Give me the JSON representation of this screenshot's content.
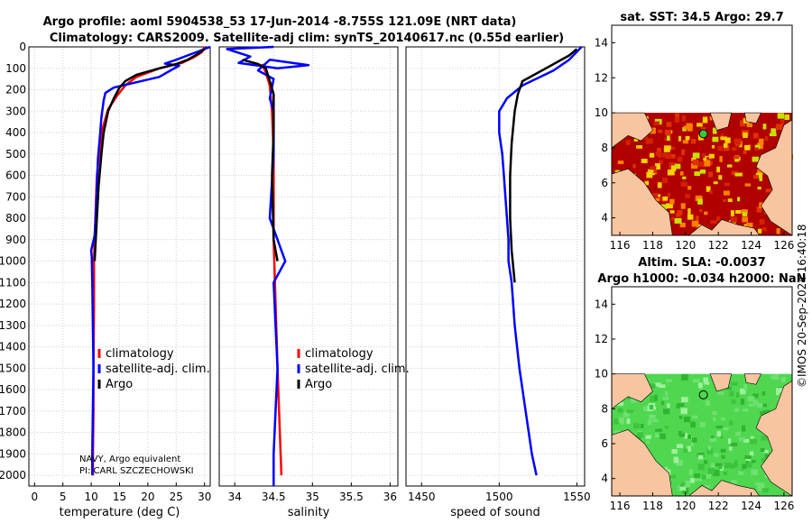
{
  "titles": {
    "line1": "Argo profile: aoml 5904538_53 17-Jun-2014 -8.755S 121.09E (NRT data)",
    "line2": "Climatology: CARS2009. Satellite-adj clim: synTS_20140617.nc (0.55d earlier)"
  },
  "colors": {
    "climatology": "#ff0000",
    "satellite": "#0000ff",
    "argo": "#000000",
    "sst_red": "#b00000",
    "land": "#f7c59f",
    "sla_green": "#4fd84f"
  },
  "depth_axis": {
    "ticks": [
      0,
      100,
      200,
      300,
      400,
      500,
      600,
      700,
      800,
      900,
      1000,
      1100,
      1200,
      1300,
      1400,
      1500,
      1600,
      1700,
      1800,
      1900,
      2000
    ],
    "min": 0,
    "max": 2050
  },
  "legend": {
    "climatology": "climatology",
    "satellite": "satellite-adj. clim.",
    "argo": "Argo"
  },
  "credits": {
    "line1": "NAVY, Argo equivalent",
    "line2": "PI: CARL SZCZECHOWSKI"
  },
  "chart_data": [
    {
      "type": "line",
      "id": "temperature",
      "xlabel": "temperature (deg C)",
      "xlim": [
        -1,
        31
      ],
      "xticks": [
        0,
        5,
        10,
        15,
        20,
        25,
        30
      ],
      "ylim": [
        0,
        2050
      ],
      "yreversed": true,
      "series": [
        {
          "name": "climatology",
          "color": "#ff0000",
          "points": [
            [
              30,
              0
            ],
            [
              29.5,
              25
            ],
            [
              28,
              50
            ],
            [
              26,
              75
            ],
            [
              22,
              100
            ],
            [
              18,
              140
            ],
            [
              16,
              180
            ],
            [
              14.5,
              230
            ],
            [
              13,
              290
            ],
            [
              12,
              380
            ],
            [
              11.5,
              480
            ],
            [
              11,
              600
            ],
            [
              10.8,
              750
            ],
            [
              10.6,
              900
            ],
            [
              10.5,
              1000
            ],
            [
              10.5,
              1200
            ],
            [
              10.4,
              1500
            ],
            [
              10.4,
              1700
            ],
            [
              10.3,
              1900
            ],
            [
              10.3,
              2000
            ]
          ]
        },
        {
          "name": "satellite-adj. clim.",
          "color": "#0000ff",
          "points": [
            [
              31,
              0
            ],
            [
              27,
              40
            ],
            [
              25,
              60
            ],
            [
              23,
              78
            ],
            [
              25.5,
              88
            ],
            [
              24,
              110
            ],
            [
              22,
              140
            ],
            [
              18,
              165
            ],
            [
              14,
              190
            ],
            [
              12.5,
              215
            ],
            [
              12.2,
              250
            ],
            [
              11.8,
              330
            ],
            [
              11.5,
              430
            ],
            [
              11.2,
              520
            ],
            [
              11,
              650
            ],
            [
              10.8,
              800
            ],
            [
              10.6,
              880
            ],
            [
              10,
              950
            ],
            [
              10.1,
              980
            ],
            [
              10.2,
              1100
            ],
            [
              10.4,
              1500
            ],
            [
              10.2,
              1900
            ],
            [
              10.2,
              2000
            ]
          ]
        },
        {
          "name": "Argo",
          "color": "#000000",
          "points": [
            [
              30,
              10
            ],
            [
              29,
              30
            ],
            [
              27,
              60
            ],
            [
              25,
              80
            ],
            [
              22,
              100
            ],
            [
              18,
              130
            ],
            [
              16,
              160
            ],
            [
              15,
              190
            ],
            [
              14,
              240
            ],
            [
              13,
              300
            ],
            [
              12.2,
              400
            ],
            [
              11.8,
              500
            ],
            [
              11.3,
              650
            ],
            [
              11,
              800
            ],
            [
              10.7,
              950
            ],
            [
              10.6,
              1000
            ]
          ]
        }
      ]
    },
    {
      "type": "line",
      "id": "salinity",
      "xlabel": "salinity",
      "xlim": [
        33.8,
        36.1
      ],
      "xticks": [
        34,
        34.5,
        35,
        35.5,
        36
      ],
      "ylim": [
        0,
        2050
      ],
      "yreversed": true,
      "series": [
        {
          "name": "climatology",
          "color": "#ff0000",
          "points": [
            [
              34.35,
              80
            ],
            [
              34.4,
              120
            ],
            [
              34.45,
              180
            ],
            [
              34.48,
              300
            ],
            [
              34.5,
              500
            ],
            [
              34.5,
              900
            ],
            [
              34.55,
              1500
            ],
            [
              34.6,
              2000
            ]
          ]
        },
        {
          "name": "satellite-adj. clim.",
          "color": "#0000ff",
          "points": [
            [
              34.5,
              0
            ],
            [
              33.9,
              10
            ],
            [
              34.2,
              45
            ],
            [
              34.05,
              75
            ],
            [
              34.55,
              100
            ],
            [
              34.95,
              85
            ],
            [
              34.45,
              60
            ],
            [
              34.3,
              110
            ],
            [
              34.5,
              150
            ],
            [
              34.45,
              240
            ],
            [
              34.5,
              300
            ],
            [
              34.5,
              500
            ],
            [
              34.45,
              800
            ],
            [
              34.55,
              900
            ],
            [
              34.65,
              1000
            ],
            [
              34.5,
              1100
            ],
            [
              34.55,
              1500
            ],
            [
              34.5,
              1900
            ],
            [
              34.5,
              2050
            ]
          ]
        },
        {
          "name": "Argo",
          "color": "#000000",
          "points": [
            [
              34.1,
              60
            ],
            [
              34.3,
              80
            ],
            [
              34.4,
              100
            ],
            [
              34.45,
              160
            ],
            [
              34.5,
              220
            ],
            [
              34.5,
              400
            ],
            [
              34.48,
              600
            ],
            [
              34.5,
              900
            ],
            [
              34.55,
              1000
            ]
          ]
        }
      ]
    },
    {
      "type": "line",
      "id": "sound",
      "xlabel": "speed of sound",
      "xlim": [
        1440,
        1555
      ],
      "xticks": [
        1450,
        1500,
        1550
      ],
      "ylim": [
        0,
        2050
      ],
      "yreversed": true,
      "series": [
        {
          "name": "satellite-adj. clim.",
          "color": "#0000ff",
          "points": [
            [
              1553,
              0
            ],
            [
              1545,
              60
            ],
            [
              1535,
              110
            ],
            [
              1515,
              180
            ],
            [
              1505,
              240
            ],
            [
              1500,
              300
            ],
            [
              1500,
              400
            ],
            [
              1502,
              500
            ],
            [
              1503,
              600
            ],
            [
              1504,
              700
            ],
            [
              1505,
              800
            ],
            [
              1506,
              900
            ],
            [
              1506,
              1000
            ],
            [
              1508,
              1100
            ],
            [
              1510,
              1300
            ],
            [
              1513,
              1500
            ],
            [
              1517,
              1700
            ],
            [
              1521,
              1900
            ],
            [
              1524,
              2000
            ]
          ]
        },
        {
          "name": "Argo",
          "color": "#000000",
          "points": [
            [
              1550,
              10
            ],
            [
              1545,
              40
            ],
            [
              1530,
              100
            ],
            [
              1515,
              160
            ],
            [
              1512,
              220
            ],
            [
              1510,
              300
            ],
            [
              1508,
              450
            ],
            [
              1507,
              600
            ],
            [
              1507,
              800
            ],
            [
              1508,
              950
            ],
            [
              1510,
              1100
            ]
          ]
        }
      ]
    },
    {
      "type": "heatmap",
      "id": "sst_map",
      "title": "sat. SST: 34.5 Argo: 29.7",
      "xticks": [
        116,
        118,
        120,
        122,
        124,
        126
      ],
      "yticks": [
        4,
        6,
        8,
        10,
        12,
        14
      ],
      "xlim": [
        115.5,
        126.5
      ],
      "ylim": [
        3,
        15
      ],
      "data_top": 10,
      "argo_position": [
        121.09,
        8.8
      ]
    },
    {
      "type": "heatmap",
      "id": "sla_map",
      "title1": "Altim. SLA: -0.0037",
      "title2": "Argo h1000: -0.034 h2000: NaN",
      "xticks": [
        116,
        118,
        120,
        122,
        124,
        126
      ],
      "yticks": [
        4,
        6,
        8,
        10,
        12,
        14
      ],
      "xlim": [
        115.5,
        126.5
      ],
      "ylim": [
        3,
        15
      ],
      "data_top": 10,
      "argo_position": [
        121.09,
        8.8
      ]
    }
  ],
  "timestamp": "©IMOS 20-Sep-2024 16:40:18"
}
